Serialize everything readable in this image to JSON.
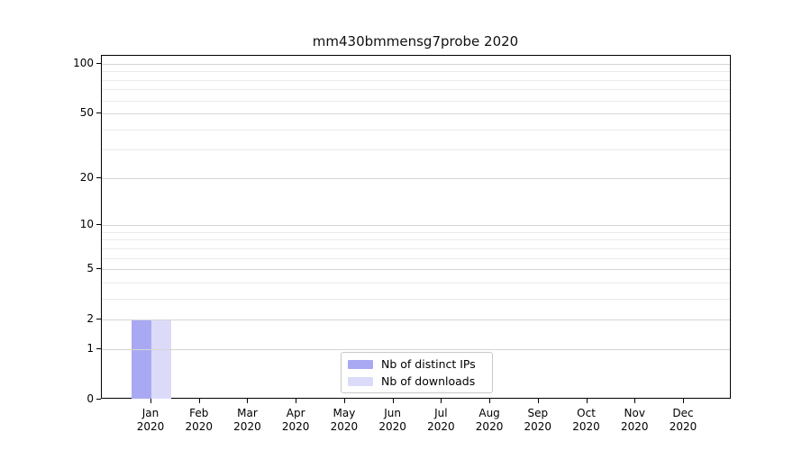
{
  "chart_data": {
    "type": "bar",
    "title": "mm430bmmensg7probe 2020",
    "categories": [
      "Jan 2020",
      "Feb 2020",
      "Mar 2020",
      "Apr 2020",
      "May 2020",
      "Jun 2020",
      "Jul 2020",
      "Aug 2020",
      "Sep 2020",
      "Oct 2020",
      "Nov 2020",
      "Dec 2020"
    ],
    "series": [
      {
        "name": "Nb of distinct IPs",
        "color": "#a9a9f3",
        "values": [
          2,
          0,
          0,
          0,
          0,
          0,
          0,
          0,
          0,
          0,
          0,
          0
        ]
      },
      {
        "name": "Nb of downloads",
        "color": "#dbdbf9",
        "values": [
          2,
          0,
          0,
          0,
          0,
          0,
          0,
          0,
          0,
          0,
          0,
          0
        ]
      }
    ],
    "xlabel": "",
    "ylabel": "",
    "yscale": "log1p",
    "yticks": [
      0,
      1,
      2,
      5,
      10,
      20,
      50,
      100
    ],
    "minor_yticks": [
      3,
      4,
      6,
      7,
      8,
      9,
      30,
      40,
      60,
      70,
      80,
      90
    ],
    "ylim": [
      0,
      112
    ],
    "grid": "horizontal",
    "legend_position": "inside-bottom-center"
  },
  "colors": {
    "background": "#ffffff",
    "axis": "#000000",
    "grid_major": "#d5d5d5",
    "grid_minor": "#ebebeb",
    "bar_distinct_ips": "#a9a9f3",
    "bar_downloads": "#dbdbf9",
    "legend_border": "#c8c8c8"
  }
}
